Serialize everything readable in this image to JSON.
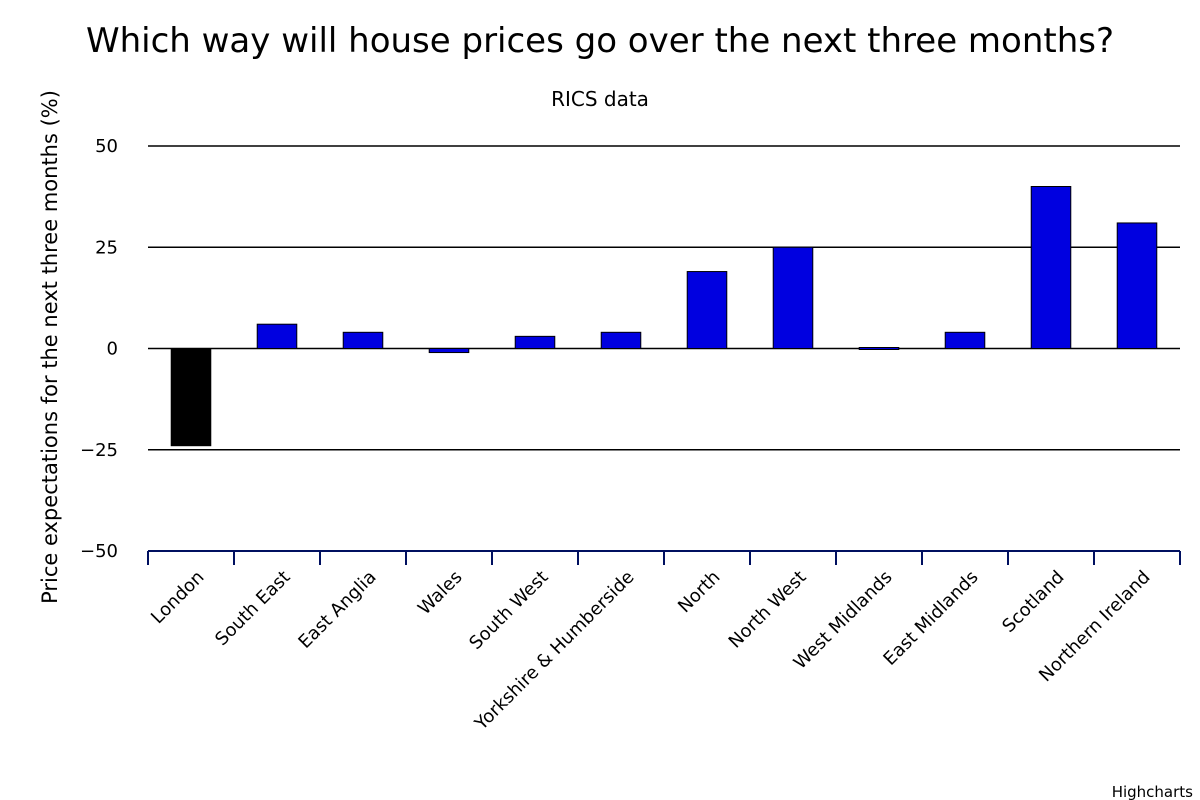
{
  "credits": "Highcharts",
  "colors": {
    "positive": "#0000e0",
    "negative": "#000000",
    "gridline": "#000000",
    "axis": "#001060"
  },
  "chart_data": {
    "type": "bar",
    "title": "Which way will house prices go over the next three months?",
    "subtitle": "RICS data",
    "xlabel": "",
    "ylabel": "Price expectations for the next three months (%)",
    "ylim": [
      -50,
      50
    ],
    "yticks": [
      50,
      25,
      0,
      -25,
      -50
    ],
    "yticks_labels": [
      "50",
      "25",
      "0",
      "−25",
      "−50"
    ],
    "grid": true,
    "legend": "none",
    "categories": [
      "London",
      "South East",
      "East Anglia",
      "Wales",
      "South West",
      "Yorkshire & Humberside",
      "North",
      "North West",
      "West Midlands",
      "East Midlands",
      "Scotland",
      "Northern Ireland"
    ],
    "values": [
      -24,
      6,
      4,
      -1,
      3,
      4,
      19,
      25,
      0,
      4,
      40,
      31
    ]
  }
}
